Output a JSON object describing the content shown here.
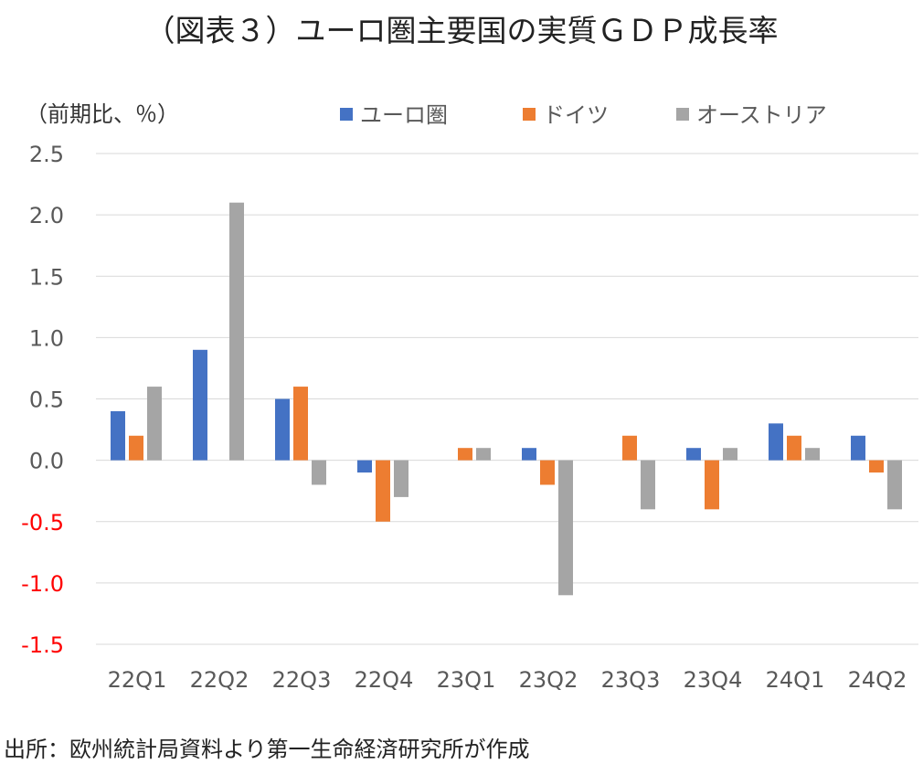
{
  "chart_data": {
    "type": "bar",
    "title": "（図表３）ユーロ圏主要国の実質ＧＤＰ成長率",
    "ylabel": "（前期比、％）",
    "xlabel": "",
    "categories": [
      "22Q1",
      "22Q2",
      "22Q3",
      "22Q4",
      "23Q1",
      "23Q2",
      "23Q3",
      "23Q4",
      "24Q1",
      "24Q2"
    ],
    "series": [
      {
        "name": "ユーロ圏",
        "color": "#4472C4",
        "values": [
          0.4,
          0.9,
          0.5,
          -0.1,
          0.0,
          0.1,
          0.0,
          0.1,
          0.3,
          0.2
        ]
      },
      {
        "name": "ドイツ",
        "color": "#ED7D31",
        "values": [
          0.2,
          0.0,
          0.6,
          -0.5,
          0.1,
          -0.2,
          0.2,
          -0.4,
          0.2,
          -0.1
        ]
      },
      {
        "name": "オーストリア",
        "color": "#A5A5A5",
        "values": [
          0.6,
          2.1,
          -0.2,
          -0.3,
          0.1,
          -1.1,
          -0.4,
          0.1,
          0.1,
          -0.4
        ]
      }
    ],
    "ylim": [
      -1.5,
      2.5
    ],
    "yticks": [
      "2.5",
      "2.0",
      "1.5",
      "1.0",
      "0.5",
      "0.0",
      "-0.5",
      "-1.0",
      "-1.5"
    ],
    "ytick_values": [
      2.5,
      2.0,
      1.5,
      1.0,
      0.5,
      0.0,
      -0.5,
      -1.0,
      -1.5
    ],
    "negative_tick_color": "#FF0000",
    "grid": true,
    "legend": "top"
  },
  "source": "出所：欧州統計局資料より第一生命経済研究所が作成"
}
